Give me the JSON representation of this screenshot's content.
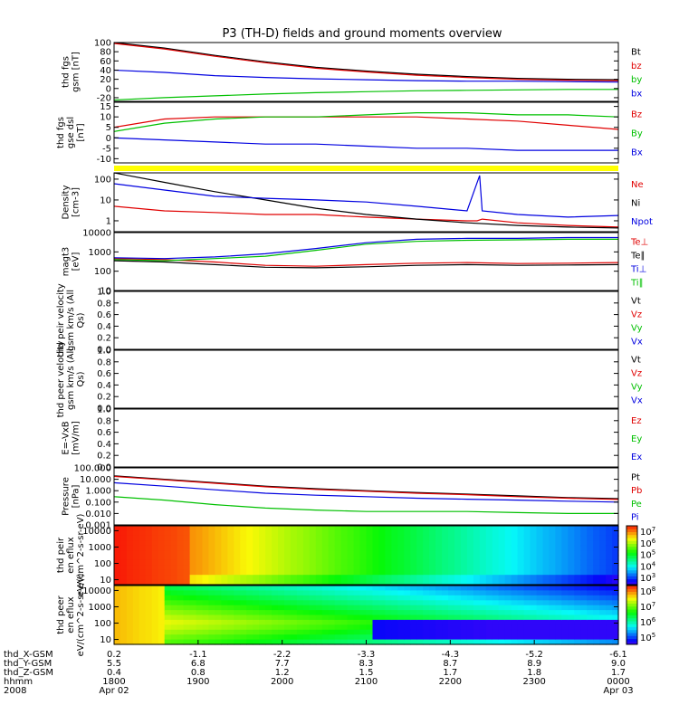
{
  "title": "P3 (TH-D) fields and ground moments overview",
  "colors": {
    "black": "#000000",
    "red": "#e00000",
    "green": "#00c000",
    "blue": "#0000e0",
    "yellow": "#ffff00"
  },
  "chart_data": {
    "type": "line",
    "x_range": [
      "1800 Apr 02",
      "0000 Apr 03"
    ],
    "panels": [
      {
        "id": "fgs-gsm",
        "ylabel": "thd fgs gsm [nT]",
        "yticks": [
          "100",
          "80",
          "60",
          "40",
          "20",
          "0",
          "-20"
        ],
        "ylim": [
          -28,
          100
        ],
        "series": [
          {
            "name": "Bt",
            "color": "black",
            "x": [
              0,
              0.1,
              0.2,
              0.3,
              0.4,
              0.5,
              0.6,
              0.7,
              0.8,
              0.9,
              1
            ],
            "values": [
              100,
              88,
              72,
              58,
              46,
              38,
              31,
              26,
              22,
              20,
              19
            ]
          },
          {
            "name": "bz",
            "color": "red",
            "x": [
              0,
              0.1,
              0.2,
              0.3,
              0.4,
              0.5,
              0.6,
              0.7,
              0.8,
              0.9,
              1
            ],
            "values": [
              98,
              86,
              70,
              56,
              44,
              36,
              29,
              24,
              20,
              18,
              17
            ]
          },
          {
            "name": "by",
            "color": "green",
            "x": [
              0,
              0.1,
              0.2,
              0.3,
              0.4,
              0.5,
              0.6,
              0.7,
              0.8,
              0.9,
              1
            ],
            "values": [
              -25,
              -20,
              -16,
              -12,
              -9,
              -7,
              -5,
              -4,
              -3,
              -2,
              -2
            ]
          },
          {
            "name": "bx",
            "color": "blue",
            "x": [
              0,
              0.1,
              0.2,
              0.3,
              0.4,
              0.5,
              0.6,
              0.7,
              0.8,
              0.9,
              1
            ],
            "values": [
              40,
              35,
              28,
              24,
              21,
              19,
              17,
              16,
              16,
              15,
              14
            ]
          }
        ]
      },
      {
        "id": "fgs-gse-dsl",
        "ylabel": "thd fgs gse dsl [nT]",
        "yticks": [
          "15",
          "10",
          "5",
          "0",
          "-5",
          "-10"
        ],
        "ylim": [
          -12,
          17
        ],
        "series": [
          {
            "name": "Bz",
            "color": "red",
            "x": [
              0,
              0.1,
              0.2,
              0.3,
              0.4,
              0.5,
              0.6,
              0.7,
              0.8,
              0.9,
              1
            ],
            "values": [
              5,
              9,
              10,
              10,
              10,
              10,
              10,
              9,
              8,
              6,
              4
            ]
          },
          {
            "name": "By",
            "color": "green",
            "x": [
              0,
              0.1,
              0.2,
              0.3,
              0.4,
              0.5,
              0.6,
              0.7,
              0.8,
              0.9,
              1
            ],
            "values": [
              3,
              7,
              9,
              10,
              10,
              11,
              12,
              12,
              11,
              11,
              10
            ]
          },
          {
            "name": "Bx",
            "color": "blue",
            "x": [
              0,
              0.1,
              0.2,
              0.3,
              0.4,
              0.5,
              0.6,
              0.7,
              0.8,
              0.9,
              1
            ],
            "values": [
              0,
              -1,
              -2,
              -3,
              -3,
              -4,
              -5,
              -5,
              -6,
              -6,
              -6
            ]
          }
        ]
      },
      {
        "id": "density",
        "ylabel": "Density [cm-3]",
        "scale": "log",
        "yticks": [
          "100",
          "10",
          "1"
        ],
        "ylim": [
          0.3,
          200
        ],
        "series": [
          {
            "name": "Ne",
            "color": "red",
            "x": [
              0,
              0.1,
              0.2,
              0.3,
              0.4,
              0.5,
              0.6,
              0.7,
              0.72,
              0.73,
              0.8,
              0.9,
              1
            ],
            "values": [
              5,
              3,
              2.5,
              2,
              2,
              1.5,
              1.2,
              1,
              1,
              1.2,
              0.8,
              0.6,
              0.5
            ]
          },
          {
            "name": "Ni",
            "color": "black",
            "x": [
              0,
              0.1,
              0.2,
              0.3,
              0.4,
              0.5,
              0.6,
              0.7,
              0.8,
              0.9,
              1
            ],
            "values": [
              200,
              70,
              25,
              10,
              4,
              2,
              1.2,
              0.8,
              0.6,
              0.5,
              0.45
            ]
          },
          {
            "name": "Npot",
            "color": "blue",
            "x": [
              0,
              0.1,
              0.2,
              0.3,
              0.4,
              0.5,
              0.6,
              0.7,
              0.725,
              0.73,
              0.8,
              0.9,
              1
            ],
            "values": [
              60,
              30,
              15,
              12,
              10,
              8,
              5,
              3,
              150,
              3,
              2,
              1.5,
              1.8
            ]
          }
        ]
      },
      {
        "id": "magt3",
        "ylabel": "magt3 [eV]",
        "scale": "log",
        "yticks": [
          "10000",
          "1000",
          "100",
          "10"
        ],
        "ylim": [
          10,
          10000
        ],
        "series": [
          {
            "name": "Te⊥",
            "color": "red",
            "x": [
              0,
              0.1,
              0.2,
              0.3,
              0.4,
              0.5,
              0.6,
              0.7,
              0.8,
              0.9,
              1
            ],
            "values": [
              450,
              400,
              300,
              200,
              180,
              220,
              260,
              280,
              250,
              260,
              280
            ]
          },
          {
            "name": "Te∥",
            "color": "black",
            "x": [
              0,
              0.1,
              0.2,
              0.3,
              0.4,
              0.5,
              0.6,
              0.7,
              0.8,
              0.9,
              1
            ],
            "values": [
              350,
              300,
              220,
              160,
              150,
              170,
              200,
              220,
              200,
              210,
              220
            ]
          },
          {
            "name": "Ti⊥",
            "color": "blue",
            "x": [
              0,
              0.1,
              0.2,
              0.3,
              0.4,
              0.5,
              0.6,
              0.7,
              0.8,
              0.9,
              1
            ],
            "values": [
              500,
              450,
              550,
              800,
              1500,
              3000,
              4500,
              5000,
              5000,
              5500,
              5500
            ]
          },
          {
            "name": "Ti∥",
            "color": "green",
            "x": [
              0,
              0.1,
              0.2,
              0.3,
              0.4,
              0.5,
              0.6,
              0.7,
              0.8,
              0.9,
              1
            ],
            "values": [
              400,
              350,
              450,
              600,
              1200,
              2500,
              3500,
              4000,
              4200,
              4500,
              4500
            ]
          }
        ]
      },
      {
        "id": "peir-velocity",
        "ylabel": "thd peir velocity gsm km/s (All Qs)",
        "yticks": [
          "1.0",
          "0.8",
          "0.6",
          "0.4",
          "0.2",
          "0.0"
        ],
        "ylim": [
          0,
          1
        ],
        "series": [
          {
            "name": "Vt",
            "color": "black",
            "values": []
          },
          {
            "name": "Vz",
            "color": "red",
            "values": []
          },
          {
            "name": "Vy",
            "color": "green",
            "values": []
          },
          {
            "name": "Vx",
            "color": "blue",
            "values": []
          }
        ]
      },
      {
        "id": "peer-velocity",
        "ylabel": "thd peer velocity gsm km/s (All Qs)",
        "yticks": [
          "1.0",
          "0.8",
          "0.6",
          "0.4",
          "0.2",
          "0.0"
        ],
        "ylim": [
          0,
          1
        ],
        "series": [
          {
            "name": "Vt",
            "color": "black",
            "values": []
          },
          {
            "name": "Vz",
            "color": "red",
            "values": []
          },
          {
            "name": "Vy",
            "color": "green",
            "values": []
          },
          {
            "name": "Vx",
            "color": "blue",
            "values": []
          }
        ]
      },
      {
        "id": "e-field",
        "ylabel": "E=-VxB [mV/m]",
        "yticks": [
          "1.0",
          "0.8",
          "0.6",
          "0.4",
          "0.2",
          "0.0"
        ],
        "ylim": [
          0,
          1
        ],
        "series": [
          {
            "name": "Ez",
            "color": "red",
            "values": []
          },
          {
            "name": "Ey",
            "color": "green",
            "values": []
          },
          {
            "name": "Ex",
            "color": "blue",
            "values": []
          }
        ]
      },
      {
        "id": "pressure",
        "ylabel": "Pressure [nPa]",
        "scale": "log",
        "yticks": [
          "100.000",
          "10.000",
          "1.000",
          "0.100",
          "0.010",
          "0.001"
        ],
        "ylim": [
          0.001,
          100
        ],
        "series": [
          {
            "name": "Pt",
            "color": "black",
            "x": [
              0,
              0.1,
              0.2,
              0.3,
              0.4,
              0.5,
              0.6,
              0.7,
              0.8,
              0.9,
              1
            ],
            "values": [
              20,
              10,
              5,
              2.5,
              1.5,
              1,
              0.7,
              0.5,
              0.35,
              0.25,
              0.2
            ]
          },
          {
            "name": "Pb",
            "color": "red",
            "x": [
              0,
              0.1,
              0.2,
              0.3,
              0.4,
              0.5,
              0.6,
              0.7,
              0.8,
              0.9,
              1
            ],
            "values": [
              18,
              9,
              4.5,
              2.2,
              1.3,
              0.9,
              0.6,
              0.45,
              0.3,
              0.22,
              0.17
            ]
          },
          {
            "name": "Pe",
            "color": "green",
            "x": [
              0,
              0.1,
              0.2,
              0.3,
              0.4,
              0.5,
              0.6,
              0.7,
              0.8,
              0.9,
              1
            ],
            "values": [
              0.3,
              0.15,
              0.06,
              0.03,
              0.02,
              0.015,
              0.015,
              0.015,
              0.012,
              0.01,
              0.01
            ]
          },
          {
            "name": "Pi",
            "color": "blue",
            "x": [
              0,
              0.1,
              0.2,
              0.3,
              0.4,
              0.5,
              0.6,
              0.7,
              0.8,
              0.9,
              1
            ],
            "values": [
              5,
              2.5,
              1.2,
              0.6,
              0.4,
              0.3,
              0.22,
              0.18,
              0.15,
              0.12,
              0.1
            ]
          }
        ]
      },
      {
        "id": "peir-en-eflux",
        "type": "heatmap",
        "ylabel": "thd peir en eflux eV/(cm^2-s-sr-eV)",
        "yticks": [
          "10000",
          "1000",
          "100",
          "10"
        ],
        "ylim": [
          5,
          20000
        ],
        "colorbar_ticks": [
          "10^7",
          "10^6",
          "10^5",
          "10^4",
          "10^3"
        ]
      },
      {
        "id": "peer-en-eflux",
        "type": "heatmap",
        "ylabel": "thd peer en eflux eV/(cm^2-s-sr-eV)",
        "yticks": [
          "10000",
          "1000",
          "100",
          "10"
        ],
        "ylim": [
          5,
          20000
        ],
        "colorbar_ticks": [
          "10^8",
          "10^7",
          "10^6",
          "10^5"
        ]
      }
    ],
    "x_axis": {
      "rows": [
        {
          "label": "thd_X-GSM",
          "values": [
            "0.2",
            "-1.1",
            "-2.2",
            "-3.3",
            "-4.3",
            "-5.2",
            "-6.1"
          ]
        },
        {
          "label": "thd_Y-GSM",
          "values": [
            "5.5",
            "6.8",
            "7.7",
            "8.3",
            "8.7",
            "8.9",
            "9.0"
          ]
        },
        {
          "label": "thd_Z-GSM",
          "values": [
            "0.4",
            "0.8",
            "1.2",
            "1.5",
            "1.7",
            "1.8",
            "1.7"
          ]
        },
        {
          "label": "hhmm",
          "values": [
            "1800",
            "1900",
            "2000",
            "2100",
            "2200",
            "2300",
            "0000"
          ]
        },
        {
          "label": "2008",
          "values": [
            "Apr 02",
            "",
            "",
            "",
            "",
            "",
            "Apr 03"
          ]
        }
      ]
    }
  }
}
